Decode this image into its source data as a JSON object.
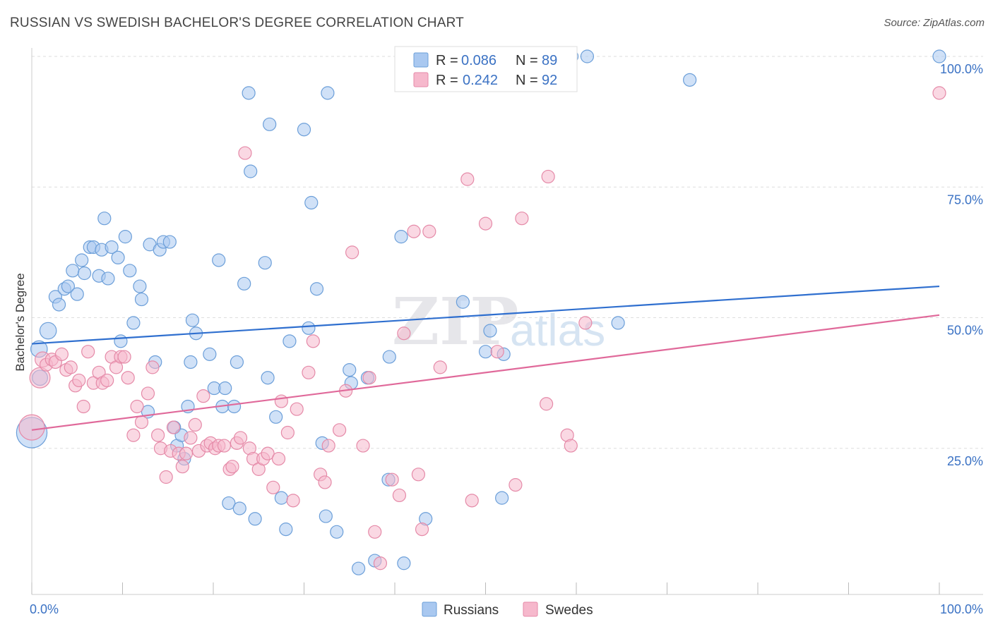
{
  "header": {
    "title": "RUSSIAN VS SWEDISH BACHELOR'S DEGREE CORRELATION CHART",
    "source": "Source: ZipAtlas.com"
  },
  "watermark": {
    "zip": "ZIP",
    "atlas": "atlas"
  },
  "legend_box": {
    "rows": [
      {
        "r_label": "R =",
        "r_value": "0.086",
        "n_label": "N =",
        "n_value": "89",
        "color": "#a9c8f0"
      },
      {
        "r_label": "R =",
        "r_value": "0.242",
        "n_label": "N =",
        "n_value": "92",
        "color": "#f6b8cc"
      }
    ]
  },
  "bottom_legend": {
    "russians": "Russians",
    "swedes": "Swedes"
  },
  "colors": {
    "russians_fill": "#a9c8f0",
    "russians_stroke": "#6c9fd9",
    "russians_line": "#2f6fcf",
    "swedes_fill": "#f6b8cc",
    "swedes_stroke": "#e58aa8",
    "swedes_line": "#e0699a",
    "tick_text": "#3b72c4",
    "grid": "#dddddd"
  },
  "chart_data": {
    "type": "scatter",
    "title": "RUSSIAN VS SWEDISH BACHELOR'S DEGREE CORRELATION CHART",
    "xlabel": "",
    "ylabel": "Bachelor's Degree",
    "xlim": [
      0,
      100
    ],
    "ylim": [
      0,
      100
    ],
    "x_tick_labels": [
      "0.0%",
      "100.0%"
    ],
    "y_ticks": [
      25,
      50,
      75,
      100
    ],
    "y_tick_labels": [
      "25.0%",
      "50.0%",
      "75.0%",
      "100.0%"
    ],
    "grid": "horizontal dashed",
    "legend_position": "top-center",
    "series": [
      {
        "name": "Russians",
        "r": 0.086,
        "n": 89,
        "trend": {
          "x": [
            0,
            100
          ],
          "y": [
            45.0,
            56.0
          ]
        },
        "points": [
          [
            0.0,
            28.0,
            2.4
          ],
          [
            0.8,
            44.0,
            1.3
          ],
          [
            0.9,
            38.5,
            1.2
          ],
          [
            1.8,
            47.5,
            1.3
          ],
          [
            2.6,
            54.0,
            1.0
          ],
          [
            3.0,
            52.5,
            1.0
          ],
          [
            3.6,
            55.5,
            1.0
          ],
          [
            4.0,
            56.0,
            1.0
          ],
          [
            4.5,
            59.0,
            1.0
          ],
          [
            5.0,
            54.5,
            1.0
          ],
          [
            5.5,
            61.0,
            1.0
          ],
          [
            5.8,
            58.5,
            1.0
          ],
          [
            6.4,
            63.5,
            1.0
          ],
          [
            6.8,
            63.5,
            1.0
          ],
          [
            7.4,
            58.0,
            1.0
          ],
          [
            7.7,
            63.0,
            1.0
          ],
          [
            8.0,
            69.0,
            1.0
          ],
          [
            8.4,
            57.5,
            1.0
          ],
          [
            8.8,
            63.5,
            1.0
          ],
          [
            9.5,
            61.5,
            1.0
          ],
          [
            9.8,
            45.5,
            1.0
          ],
          [
            10.3,
            65.5,
            1.0
          ],
          [
            10.8,
            59.0,
            1.0
          ],
          [
            11.2,
            49.0,
            1.0
          ],
          [
            11.9,
            56.0,
            1.0
          ],
          [
            12.1,
            53.5,
            1.0
          ],
          [
            12.8,
            32.0,
            1.0
          ],
          [
            13.0,
            64.0,
            1.0
          ],
          [
            13.6,
            41.5,
            1.0
          ],
          [
            14.1,
            63.0,
            1.0
          ],
          [
            14.5,
            64.5,
            1.0
          ],
          [
            15.2,
            64.5,
            1.0
          ],
          [
            15.7,
            29.0,
            1.0
          ],
          [
            16.0,
            25.5,
            1.0
          ],
          [
            16.5,
            27.5,
            1.0
          ],
          [
            16.8,
            23.0,
            1.0
          ],
          [
            17.2,
            33.0,
            1.0
          ],
          [
            17.5,
            41.5,
            1.0
          ],
          [
            17.7,
            49.5,
            1.0
          ],
          [
            18.1,
            47.0,
            1.0
          ],
          [
            19.6,
            43.0,
            1.0
          ],
          [
            20.1,
            36.5,
            1.0
          ],
          [
            20.6,
            61.0,
            1.0
          ],
          [
            21.0,
            33.0,
            1.0
          ],
          [
            21.3,
            36.5,
            1.0
          ],
          [
            21.7,
            14.5,
            1.0
          ],
          [
            22.3,
            33.0,
            1.0
          ],
          [
            22.6,
            41.5,
            1.0
          ],
          [
            22.9,
            13.5,
            1.0
          ],
          [
            23.4,
            56.5,
            1.0
          ],
          [
            23.9,
            93.0,
            1.0
          ],
          [
            24.1,
            78.0,
            1.0
          ],
          [
            24.6,
            11.5,
            1.0
          ],
          [
            25.7,
            60.5,
            1.0
          ],
          [
            26.0,
            38.5,
            1.0
          ],
          [
            26.2,
            87.0,
            1.0
          ],
          [
            26.9,
            31.0,
            1.0
          ],
          [
            27.5,
            15.5,
            1.0
          ],
          [
            28.0,
            9.5,
            1.0
          ],
          [
            28.4,
            45.5,
            1.0
          ],
          [
            30.0,
            86.0,
            1.0
          ],
          [
            30.5,
            48.0,
            1.0
          ],
          [
            30.8,
            72.0,
            1.0
          ],
          [
            31.4,
            55.5,
            1.0
          ],
          [
            32.0,
            26.0,
            1.0
          ],
          [
            32.4,
            12.0,
            1.0
          ],
          [
            32.6,
            93.0,
            1.0
          ],
          [
            33.6,
            9.0,
            1.0
          ],
          [
            35.0,
            40.0,
            1.0
          ],
          [
            35.2,
            37.5,
            1.0
          ],
          [
            37.0,
            38.5,
            1.0
          ],
          [
            36.0,
            2.0,
            1.0
          ],
          [
            37.8,
            3.5,
            1.0
          ],
          [
            39.3,
            19.0,
            1.0
          ],
          [
            39.4,
            42.5,
            1.0
          ],
          [
            40.7,
            65.5,
            1.0
          ],
          [
            41.0,
            3.0,
            1.0
          ],
          [
            43.4,
            11.5,
            1.0
          ],
          [
            47.5,
            53.0,
            1.0
          ],
          [
            50.0,
            43.5,
            1.0
          ],
          [
            50.5,
            47.5,
            1.0
          ],
          [
            51.8,
            15.5,
            1.0
          ],
          [
            52.0,
            43.0,
            1.0
          ],
          [
            59.5,
            100.0,
            1.0
          ],
          [
            61.2,
            100.0,
            1.0
          ],
          [
            64.6,
            49.0,
            1.0
          ],
          [
            72.5,
            95.5,
            1.0
          ],
          [
            100.0,
            100.0,
            1.0
          ]
        ]
      },
      {
        "name": "Swedes",
        "r": 0.242,
        "n": 92,
        "trend": {
          "x": [
            0,
            100
          ],
          "y": [
            28.5,
            50.5
          ]
        },
        "points": [
          [
            0.0,
            29.0,
            2.0
          ],
          [
            0.9,
            38.5,
            1.6
          ],
          [
            1.2,
            42.0,
            1.2
          ],
          [
            1.6,
            41.0,
            1.0
          ],
          [
            2.2,
            42.0,
            1.0
          ],
          [
            2.6,
            41.5,
            1.0
          ],
          [
            3.3,
            43.0,
            1.0
          ],
          [
            3.8,
            40.0,
            1.0
          ],
          [
            4.3,
            40.5,
            1.0
          ],
          [
            4.8,
            37.0,
            1.0
          ],
          [
            5.2,
            38.0,
            1.0
          ],
          [
            5.7,
            33.0,
            1.0
          ],
          [
            6.2,
            43.5,
            1.0
          ],
          [
            6.8,
            37.5,
            1.0
          ],
          [
            7.4,
            39.5,
            1.0
          ],
          [
            7.8,
            37.5,
            1.0
          ],
          [
            8.3,
            38.0,
            1.0
          ],
          [
            8.8,
            42.5,
            1.0
          ],
          [
            9.3,
            40.5,
            1.0
          ],
          [
            9.8,
            42.5,
            1.0
          ],
          [
            10.2,
            42.5,
            1.0
          ],
          [
            10.6,
            38.5,
            1.0
          ],
          [
            11.2,
            27.5,
            1.0
          ],
          [
            11.6,
            33.0,
            1.0
          ],
          [
            12.1,
            30.0,
            1.0
          ],
          [
            12.8,
            35.5,
            1.0
          ],
          [
            13.3,
            40.5,
            1.0
          ],
          [
            13.9,
            27.5,
            1.0
          ],
          [
            14.2,
            25.0,
            1.0
          ],
          [
            14.8,
            19.5,
            1.0
          ],
          [
            15.3,
            24.5,
            1.0
          ],
          [
            15.6,
            29.0,
            1.0
          ],
          [
            16.2,
            24.0,
            1.0
          ],
          [
            16.6,
            21.5,
            1.0
          ],
          [
            17.0,
            24.0,
            1.0
          ],
          [
            17.5,
            27.0,
            1.0
          ],
          [
            18.0,
            29.5,
            1.0
          ],
          [
            18.4,
            24.5,
            1.0
          ],
          [
            18.9,
            35.0,
            1.0
          ],
          [
            19.3,
            25.5,
            1.0
          ],
          [
            19.7,
            26.0,
            1.0
          ],
          [
            20.2,
            25.0,
            1.0
          ],
          [
            20.6,
            25.5,
            1.0
          ],
          [
            21.2,
            25.5,
            1.0
          ],
          [
            21.8,
            21.0,
            1.0
          ],
          [
            22.1,
            21.5,
            1.0
          ],
          [
            22.6,
            26.0,
            1.0
          ],
          [
            23.0,
            27.0,
            1.0
          ],
          [
            23.5,
            81.5,
            1.0
          ],
          [
            24.0,
            25.0,
            1.0
          ],
          [
            24.4,
            23.0,
            1.0
          ],
          [
            25.0,
            21.0,
            1.0
          ],
          [
            25.5,
            23.0,
            1.0
          ],
          [
            26.0,
            24.0,
            1.0
          ],
          [
            26.6,
            17.5,
            1.0
          ],
          [
            27.2,
            23.0,
            1.0
          ],
          [
            27.5,
            34.0,
            1.0
          ],
          [
            28.2,
            28.0,
            1.0
          ],
          [
            28.8,
            15.0,
            1.0
          ],
          [
            29.2,
            32.5,
            1.0
          ],
          [
            30.5,
            39.5,
            1.0
          ],
          [
            31.0,
            45.5,
            1.0
          ],
          [
            31.8,
            20.0,
            1.0
          ],
          [
            32.3,
            18.5,
            1.0
          ],
          [
            32.7,
            25.5,
            1.0
          ],
          [
            33.9,
            28.5,
            1.0
          ],
          [
            34.6,
            36.0,
            1.0
          ],
          [
            35.3,
            62.5,
            1.0
          ],
          [
            36.5,
            25.5,
            1.0
          ],
          [
            37.2,
            38.5,
            1.0
          ],
          [
            37.8,
            9.0,
            1.0
          ],
          [
            38.4,
            3.0,
            1.0
          ],
          [
            39.7,
            19.0,
            1.0
          ],
          [
            40.5,
            16.0,
            1.0
          ],
          [
            41.0,
            47.0,
            1.0
          ],
          [
            42.1,
            66.5,
            1.0
          ],
          [
            42.6,
            20.0,
            1.0
          ],
          [
            43.0,
            9.5,
            1.0
          ],
          [
            43.8,
            66.5,
            1.0
          ],
          [
            45.0,
            40.5,
            1.0
          ],
          [
            48.0,
            76.5,
            1.0
          ],
          [
            48.5,
            15.0,
            1.0
          ],
          [
            50.0,
            68.0,
            1.0
          ],
          [
            51.3,
            43.5,
            1.0
          ],
          [
            53.3,
            18.0,
            1.0
          ],
          [
            54.0,
            69.0,
            1.0
          ],
          [
            56.7,
            33.5,
            1.0
          ],
          [
            56.9,
            77.0,
            1.0
          ],
          [
            59.0,
            27.5,
            1.0
          ],
          [
            59.4,
            25.5,
            1.0
          ],
          [
            61.0,
            49.0,
            1.0
          ],
          [
            100.0,
            93.0,
            1.0
          ]
        ]
      }
    ]
  }
}
